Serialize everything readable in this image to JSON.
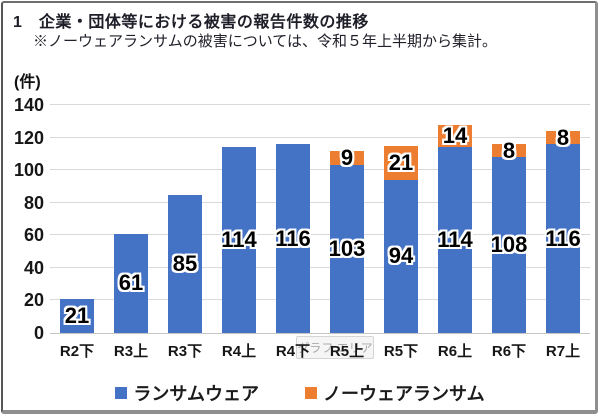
{
  "header": {
    "title": "1　企業・団体等における被害の報告件数の推移",
    "note": "※ノーウェアランサムの被害については、令和５年上半期から集計。"
  },
  "tooltip_label": "グラフ エリア",
  "chart_data": {
    "type": "bar",
    "stacked": true,
    "title": "企業・団体等における被害の報告件数の推移",
    "unit_label": "(件)",
    "categories": [
      "R2下",
      "R3上",
      "R3下",
      "R4上",
      "R4下",
      "R5上",
      "R5下",
      "R6上",
      "R6下",
      "R7上"
    ],
    "series": [
      {
        "key": "ransomware",
        "name": "ランサムウェア",
        "color": "#4472C4",
        "values": [
          21,
          61,
          85,
          114,
          116,
          103,
          94,
          114,
          108,
          116
        ]
      },
      {
        "key": "noware-ransom",
        "name": "ノーウェアランサム",
        "color": "#ED7D31",
        "values": [
          0,
          0,
          0,
          0,
          0,
          9,
          21,
          14,
          8,
          8
        ]
      }
    ],
    "ylim": [
      0,
      140
    ],
    "yticks": [
      0,
      20,
      40,
      60,
      80,
      100,
      120,
      140
    ],
    "grid": true,
    "legend_position": "bottom",
    "gridline_color": "#D9D9D9",
    "label_color": "#000000",
    "label_outline_color": "#FFFFFF"
  }
}
